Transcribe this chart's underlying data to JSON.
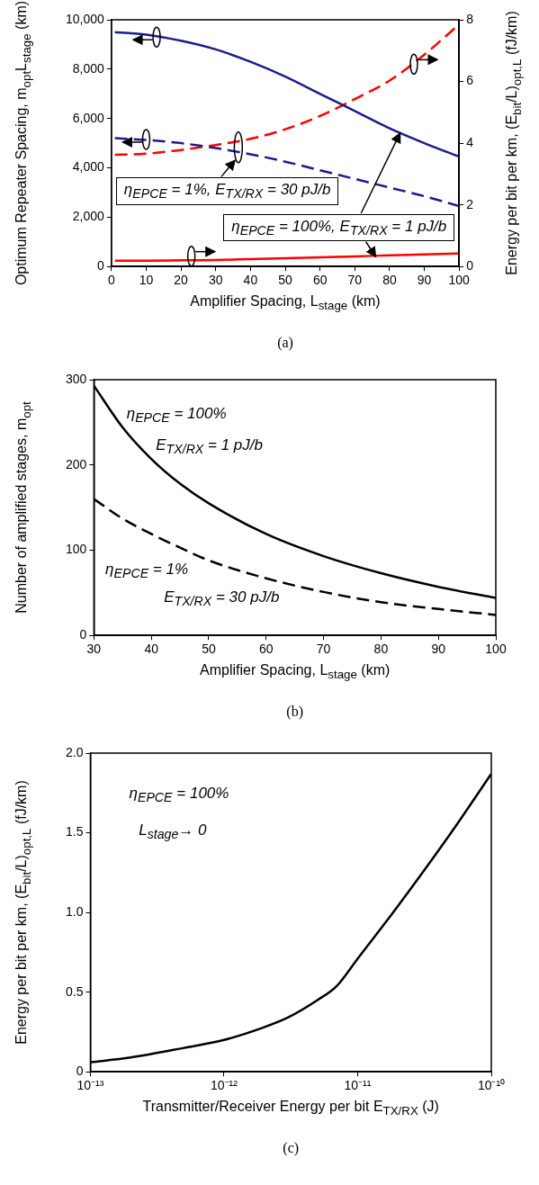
{
  "chart_data": [
    {
      "type": "line",
      "xlabel": "Amplifier Spacing, L$_{stage}$ (km)",
      "ylabel": "Optimum Repeater Spacing, m$_{opt}$L$_{stage}$ (km)",
      "y2label": "Energy per bit per km, (E$_{bit}$/L)$_{opt,L}$ (fJ/km)",
      "x": [
        1,
        10,
        20,
        30,
        40,
        50,
        60,
        70,
        80,
        90,
        100
      ],
      "series": [
        {
          "color": "#1c1c8c",
          "line_style": "solid",
          "axis": "y",
          "values": [
            9500,
            9400,
            9150,
            8800,
            8300,
            7700,
            7000,
            6300,
            5600,
            5000,
            4450
          ]
        },
        {
          "color": "#1c1c8c",
          "line_style": "dashed",
          "axis": "y",
          "values": [
            5200,
            5130,
            5000,
            4800,
            4550,
            4250,
            3900,
            3550,
            3200,
            2850,
            2450
          ]
        },
        {
          "color": "#ff0000",
          "line_style": "dashed",
          "axis": "y2",
          "values": [
            3.62,
            3.66,
            3.78,
            3.94,
            4.14,
            4.45,
            4.88,
            5.43,
            6.03,
            6.87,
            7.85
          ]
        },
        {
          "color": "#ff0000",
          "line_style": "solid",
          "axis": "y2",
          "values": [
            0.19,
            0.19,
            0.2,
            0.21,
            0.24,
            0.27,
            0.3,
            0.33,
            0.36,
            0.39,
            0.42
          ]
        }
      ],
      "xlim": [
        0,
        100
      ],
      "xticks": [
        0,
        10,
        20,
        30,
        40,
        50,
        60,
        70,
        80,
        90,
        100
      ],
      "ylim": [
        0,
        10000
      ],
      "yticks": [
        0,
        {
          "value": 2000,
          "label": "2,000"
        },
        {
          "value": 4000,
          "label": "4,000"
        },
        {
          "value": 6000,
          "label": "6,000"
        },
        {
          "value": 8000,
          "label": "8,000"
        },
        {
          "value": 10000,
          "label": "10,000"
        }
      ],
      "y2lim": [
        0,
        8
      ],
      "y2ticks": [
        0,
        2,
        4,
        6,
        8
      ],
      "grid": false,
      "marker": "none",
      "annotations": [
        "η$_{EPCE}$ = 1%, E$_{TX/RX}$ = 30 pJ/b",
        {
          "text": "η$_{EPCE}$ = 100%, E$_{TX/RX}$ = 1 pJ/b",
          "x": 83,
          "y": 5400
        },
        "(a)"
      ]
    },
    {
      "type": "line",
      "xlabel": "Amplifier Spacing, L$_{stage}$ (km)",
      "ylabel": "Number of amplified stages, m$_{opt}$",
      "x": [
        30,
        35,
        40,
        45,
        50,
        60,
        70,
        80,
        90,
        100
      ],
      "series": [
        {
          "color": "#000000",
          "line_style": "solid",
          "values": [
            293,
            244,
            207,
            178,
            155,
            119,
            93,
            73,
            57,
            44
          ]
        },
        {
          "color": "#000000",
          "line_style": "dashed",
          "values": [
            160,
            137,
            119,
            103,
            88,
            67,
            51,
            39,
            31,
            24
          ]
        }
      ],
      "xlim": [
        30,
        100
      ],
      "xticks": [
        30,
        40,
        50,
        60,
        70,
        80,
        90,
        100
      ],
      "ylim": [
        0,
        300
      ],
      "yticks": [
        0,
        100,
        200,
        300
      ],
      "grid": false,
      "marker": "none",
      "annotations": [
        "η$_{EPCE}$ = 100%",
        "E$_{TX/RX}$ = 1 pJ/b",
        "η$_{EPCE}$ = 1%",
        "E$_{TX/RX}$ = 30 pJ/b",
        "(b)"
      ]
    },
    {
      "type": "line",
      "xlabel": "Transmitter/Receiver Energy per bit E$_{TX/RX}$ (J)",
      "ylabel": "Energy per bit per km, (E$_{bit}$/L)$_{opt,L}$ (fJ/km)",
      "x": [
        1e-13,
        2e-13,
        5e-13,
        1e-12,
        2e-12,
        3e-12,
        5e-12,
        7e-12,
        1e-11,
        2e-11,
        5e-11,
        1e-10
      ],
      "series": [
        {
          "color": "#000000",
          "line_style": "solid",
          "values": [
            0.06,
            0.09,
            0.15,
            0.2,
            0.28,
            0.34,
            0.45,
            0.54,
            0.71,
            1.04,
            1.5,
            1.87
          ]
        }
      ],
      "log": "x",
      "xlim": [
        1e-13,
        1e-10
      ],
      "xticks": [
        {
          "value": 1e-13,
          "label": "10⁻¹³"
        },
        {
          "value": 1e-12,
          "label": "10⁻¹²"
        },
        {
          "value": 1e-11,
          "label": "10⁻¹¹"
        },
        {
          "value": 1e-10,
          "label": "10⁻¹⁰"
        }
      ],
      "ylim": [
        0,
        2
      ],
      "yticks": [
        0,
        0.5,
        {
          "value": 1,
          "label": "1.0"
        },
        1.5,
        {
          "value": 2,
          "label": "2.0"
        }
      ],
      "grid": false,
      "marker": "none",
      "annotations": [
        "η$_{EPCE}$ = 100%",
        "L$_{stage}$→ 0",
        "(c)"
      ]
    }
  ]
}
